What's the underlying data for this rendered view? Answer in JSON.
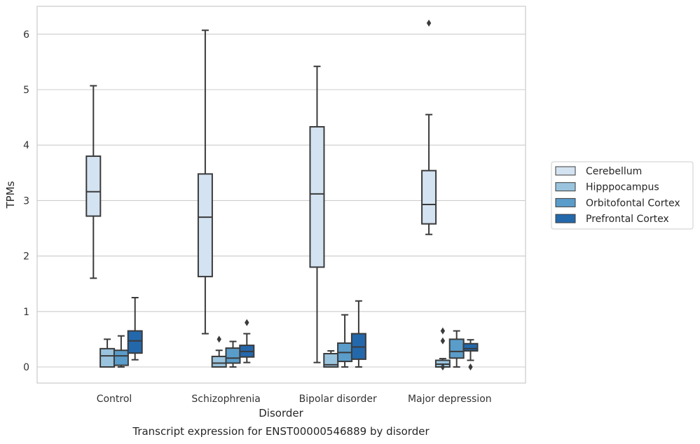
{
  "chart_data": {
    "type": "box",
    "title": "Transcript expression for ENST00000546889 by disorder",
    "xlabel": "Disorder",
    "ylabel": "TPMs",
    "ylim": [
      -0.3,
      6.5
    ],
    "yticks": [
      0,
      1,
      2,
      3,
      4,
      5,
      6
    ],
    "grid": true,
    "legend_position": "right",
    "categories": [
      "Control",
      "Schizophrenia",
      "Bipolar disorder",
      "Major depression"
    ],
    "series": [
      {
        "name": "Cerebellum",
        "color": "#d4e3f2",
        "boxes": [
          {
            "whisker_low": 1.6,
            "q1": 2.72,
            "median": 3.16,
            "q3": 3.8,
            "whisker_high": 5.07,
            "outliers": []
          },
          {
            "whisker_low": 0.6,
            "q1": 1.63,
            "median": 2.7,
            "q3": 3.48,
            "whisker_high": 6.07,
            "outliers": []
          },
          {
            "whisker_low": 0.08,
            "q1": 1.8,
            "median": 3.12,
            "q3": 4.33,
            "whisker_high": 5.42,
            "outliers": []
          },
          {
            "whisker_low": 2.39,
            "q1": 2.58,
            "median": 2.93,
            "q3": 3.54,
            "whisker_high": 4.55,
            "outliers": [
              6.2
            ]
          }
        ]
      },
      {
        "name": "Hipppocampus",
        "color": "#9ac4de",
        "boxes": [
          {
            "whisker_low": 0.0,
            "q1": 0.0,
            "median": 0.2,
            "q3": 0.33,
            "whisker_high": 0.5,
            "outliers": []
          },
          {
            "whisker_low": 0.0,
            "q1": 0.0,
            "median": 0.07,
            "q3": 0.19,
            "whisker_high": 0.3,
            "outliers": [
              0.5
            ]
          },
          {
            "whisker_low": 0.0,
            "q1": 0.0,
            "median": 0.04,
            "q3": 0.24,
            "whisker_high": 0.29,
            "outliers": []
          },
          {
            "whisker_low": 0.0,
            "q1": 0.0,
            "median": 0.05,
            "q3": 0.12,
            "whisker_high": 0.15,
            "outliers": [
              0.65,
              0.47,
              0.0
            ]
          }
        ]
      },
      {
        "name": "Orbitofontal Cortex",
        "color": "#5a9dcb",
        "boxes": [
          {
            "whisker_low": 0.0,
            "q1": 0.03,
            "median": 0.2,
            "q3": 0.3,
            "whisker_high": 0.56,
            "outliers": []
          },
          {
            "whisker_low": 0.0,
            "q1": 0.07,
            "median": 0.16,
            "q3": 0.34,
            "whisker_high": 0.46,
            "outliers": []
          },
          {
            "whisker_low": 0.0,
            "q1": 0.1,
            "median": 0.26,
            "q3": 0.43,
            "whisker_high": 0.94,
            "outliers": []
          },
          {
            "whisker_low": 0.0,
            "q1": 0.16,
            "median": 0.28,
            "q3": 0.5,
            "whisker_high": 0.65,
            "outliers": []
          }
        ]
      },
      {
        "name": "Prefrontal Cortex",
        "color": "#2468ac",
        "boxes": [
          {
            "whisker_low": 0.13,
            "q1": 0.25,
            "median": 0.47,
            "q3": 0.65,
            "whisker_high": 1.25,
            "outliers": []
          },
          {
            "whisker_low": 0.08,
            "q1": 0.18,
            "median": 0.28,
            "q3": 0.39,
            "whisker_high": 0.6,
            "outliers": [
              0.8
            ]
          },
          {
            "whisker_low": 0.0,
            "q1": 0.14,
            "median": 0.36,
            "q3": 0.6,
            "whisker_high": 1.19,
            "outliers": []
          },
          {
            "whisker_low": 0.12,
            "q1": 0.29,
            "median": 0.33,
            "q3": 0.42,
            "whisker_high": 0.49,
            "outliers": [
              0.0
            ]
          }
        ]
      }
    ]
  }
}
